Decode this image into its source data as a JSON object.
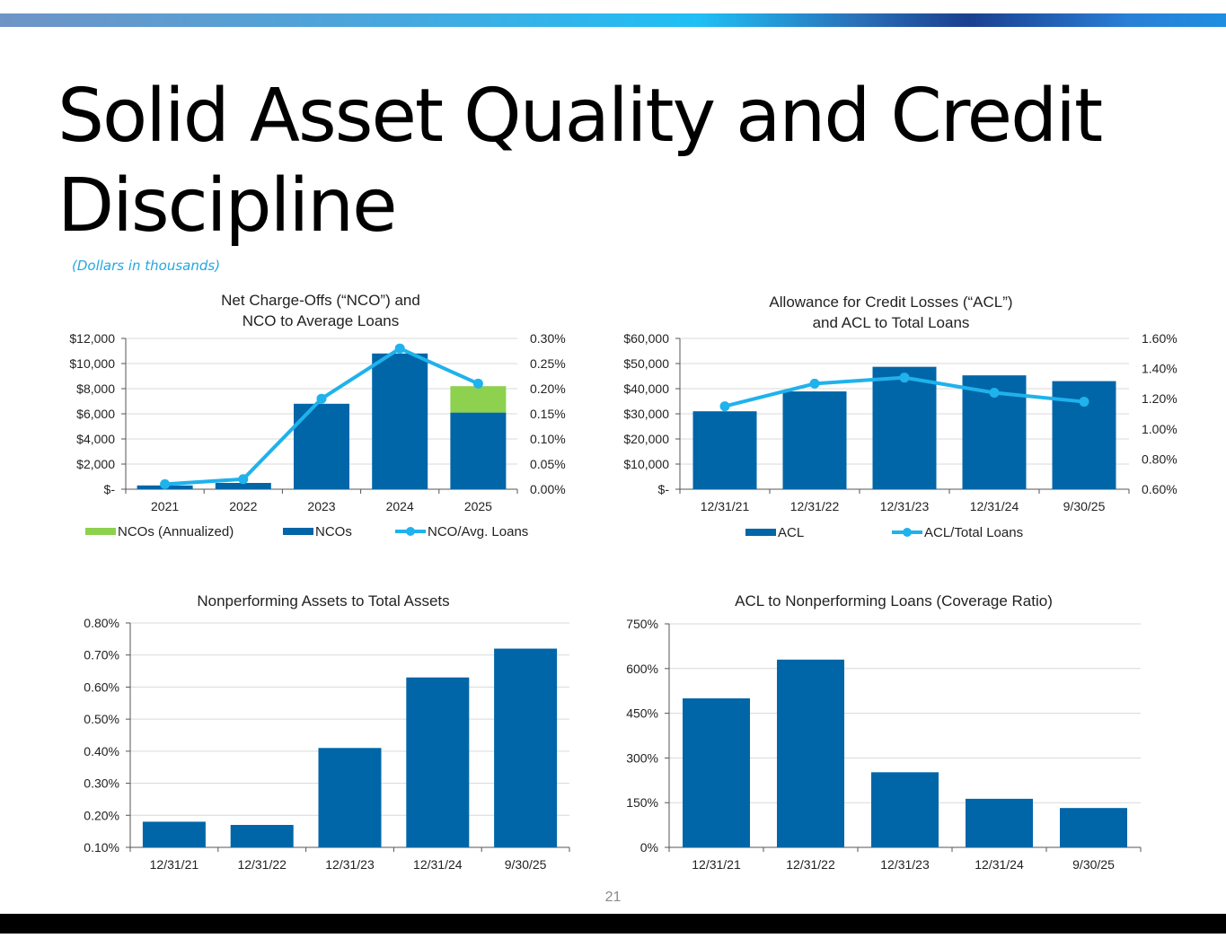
{
  "slide": {
    "title": "Solid Asset Quality and Credit Discipline",
    "subtitle": "(Dollars in thousands)",
    "page_number": "21"
  },
  "colors": {
    "bar": "#0066a8",
    "annualized": "#8dd14f",
    "line": "#1fb2ec",
    "grid": "#d9d9d9"
  },
  "chart_data": [
    {
      "type": "bar",
      "title": [
        "Net Charge-Offs (“NCO”) and",
        "NCO to Average Loans"
      ],
      "categories": [
        "2021",
        "2022",
        "2023",
        "2024",
        "2025"
      ],
      "series": [
        {
          "name": "NCOs",
          "kind": "bar",
          "values": [
            300,
            500,
            6800,
            10800,
            6100
          ]
        },
        {
          "name": "NCOs (Annualized)",
          "kind": "bar-stack",
          "values": [
            0,
            0,
            0,
            0,
            2100
          ]
        },
        {
          "name": "NCO/Avg. Loans",
          "kind": "line",
          "axis": "right",
          "values": [
            0.01,
            0.02,
            0.18,
            0.28,
            0.21
          ]
        }
      ],
      "legend": [
        "NCOs (Annualized)",
        "NCOs",
        "NCO/Avg. Loans"
      ],
      "legend_position": "bottom",
      "ylim": [
        0,
        12000
      ],
      "yticks": [
        "$-",
        "$2,000",
        "$4,000",
        "$6,000",
        "$8,000",
        "$10,000",
        "$12,000"
      ],
      "y2lim": [
        0,
        0.3
      ],
      "y2ticks": [
        "0.00%",
        "0.05%",
        "0.10%",
        "0.15%",
        "0.20%",
        "0.25%",
        "0.30%"
      ],
      "grid": true
    },
    {
      "type": "bar",
      "title": [
        "Allowance for Credit Losses (“ACL”)",
        "and ACL to Total Loans"
      ],
      "categories": [
        "12/31/21",
        "12/31/22",
        "12/31/23",
        "12/31/24",
        "9/30/25"
      ],
      "series": [
        {
          "name": "ACL",
          "kind": "bar",
          "values": [
            31000,
            38900,
            48700,
            45300,
            43000
          ]
        },
        {
          "name": "ACL/Total Loans",
          "kind": "line",
          "axis": "right",
          "values": [
            1.15,
            1.3,
            1.34,
            1.24,
            1.18
          ]
        }
      ],
      "legend": [
        "ACL",
        "ACL/Total Loans"
      ],
      "legend_position": "bottom",
      "ylim": [
        0,
        60000
      ],
      "yticks": [
        "$-",
        "$10,000",
        "$20,000",
        "$30,000",
        "$40,000",
        "$50,000",
        "$60,000"
      ],
      "y2lim": [
        0.6,
        1.6
      ],
      "y2ticks": [
        "0.60%",
        "0.80%",
        "1.00%",
        "1.20%",
        "1.40%",
        "1.60%"
      ],
      "grid": true
    },
    {
      "type": "bar",
      "title": [
        "Nonperforming Assets to Total Assets"
      ],
      "categories": [
        "12/31/21",
        "12/31/22",
        "12/31/23",
        "12/31/24",
        "9/30/25"
      ],
      "series": [
        {
          "name": "NPA/Total Assets",
          "kind": "bar",
          "values": [
            0.18,
            0.17,
            0.41,
            0.63,
            0.72
          ]
        }
      ],
      "ylim": [
        0.1,
        0.8
      ],
      "yticks": [
        "0.10%",
        "0.20%",
        "0.30%",
        "0.40%",
        "0.50%",
        "0.60%",
        "0.70%",
        "0.80%"
      ],
      "grid": true
    },
    {
      "type": "bar",
      "title": [
        "ACL to Nonperforming Loans (Coverage Ratio)"
      ],
      "categories": [
        "12/31/21",
        "12/31/22",
        "12/31/23",
        "12/31/24",
        "9/30/25"
      ],
      "series": [
        {
          "name": "Coverage Ratio",
          "kind": "bar",
          "values": [
            500,
            630,
            252,
            163,
            132
          ]
        }
      ],
      "ylim": [
        0,
        750
      ],
      "yticks": [
        "0%",
        "150%",
        "300%",
        "450%",
        "600%",
        "750%"
      ],
      "grid": true
    }
  ]
}
